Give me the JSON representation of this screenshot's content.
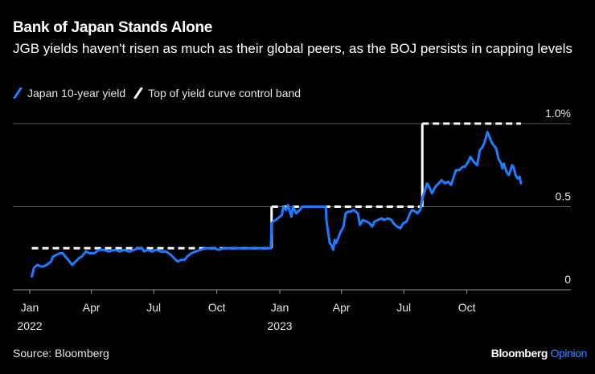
{
  "header": {
    "title": "Bank of Japan Stands Alone",
    "subtitle": "JGB yields haven't risen as much as their global peers, as the BOJ persists in capping levels"
  },
  "legend": [
    {
      "label": "Japan 10-year yield",
      "color": "#1f7bff",
      "style": "solid"
    },
    {
      "label": "Top of yield curve control band",
      "color": "#ffffff",
      "style": "dashed"
    }
  ],
  "footer": {
    "source": "Source: Bloomberg",
    "brand_primary": "Bloomberg",
    "brand_secondary": "Opinion"
  },
  "chart_data": {
    "type": "line",
    "title": "Bank of Japan Stands Alone",
    "subtitle": "JGB yields haven't risen as much as their global peers, as the BOJ persists in capping levels",
    "xlabel": "",
    "ylabel": "",
    "x_range": [
      "2022-01-01",
      "2023-12-31"
    ],
    "ylim": [
      0,
      1.0
    ],
    "y_ticks": [
      {
        "value": 0,
        "label": "0"
      },
      {
        "value": 0.5,
        "label": "0.5"
      },
      {
        "value": 1.0,
        "label": "1.0%"
      }
    ],
    "x_ticks": [
      {
        "date": "2022-01-01",
        "label": "Jan",
        "sublabel": "2022"
      },
      {
        "date": "2022-04-01",
        "label": "Apr",
        "sublabel": ""
      },
      {
        "date": "2022-07-01",
        "label": "Jul",
        "sublabel": ""
      },
      {
        "date": "2022-10-01",
        "label": "Oct",
        "sublabel": ""
      },
      {
        "date": "2023-01-01",
        "label": "Jan",
        "sublabel": "2023"
      },
      {
        "date": "2023-04-01",
        "label": "Apr",
        "sublabel": ""
      },
      {
        "date": "2023-07-01",
        "label": "Jul",
        "sublabel": ""
      },
      {
        "date": "2023-10-01",
        "label": "Oct",
        "sublabel": ""
      }
    ],
    "grid": true,
    "legend_position": "top-left",
    "series": [
      {
        "name": "Japan 10-year yield",
        "color": "#1f7bff",
        "style": "solid",
        "points": [
          [
            "2022-01-04",
            0.08
          ],
          [
            "2022-01-07",
            0.13
          ],
          [
            "2022-01-12",
            0.15
          ],
          [
            "2022-01-17",
            0.14
          ],
          [
            "2022-01-21",
            0.14
          ],
          [
            "2022-01-26",
            0.15
          ],
          [
            "2022-02-01",
            0.17
          ],
          [
            "2022-02-04",
            0.2
          ],
          [
            "2022-02-09",
            0.21
          ],
          [
            "2022-02-14",
            0.22
          ],
          [
            "2022-02-18",
            0.22
          ],
          [
            "2022-02-24",
            0.19
          ],
          [
            "2022-03-04",
            0.15
          ],
          [
            "2022-03-09",
            0.17
          ],
          [
            "2022-03-14",
            0.19
          ],
          [
            "2022-03-18",
            0.2
          ],
          [
            "2022-03-24",
            0.23
          ],
          [
            "2022-03-29",
            0.22
          ],
          [
            "2022-04-05",
            0.22
          ],
          [
            "2022-04-12",
            0.24
          ],
          [
            "2022-04-19",
            0.24
          ],
          [
            "2022-04-26",
            0.23
          ],
          [
            "2022-05-06",
            0.24
          ],
          [
            "2022-05-12",
            0.23
          ],
          [
            "2022-05-19",
            0.24
          ],
          [
            "2022-05-26",
            0.23
          ],
          [
            "2022-06-02",
            0.24
          ],
          [
            "2022-06-09",
            0.25
          ],
          [
            "2022-06-14",
            0.25
          ],
          [
            "2022-06-17",
            0.23
          ],
          [
            "2022-06-22",
            0.24
          ],
          [
            "2022-06-28",
            0.23
          ],
          [
            "2022-07-05",
            0.24
          ],
          [
            "2022-07-12",
            0.23
          ],
          [
            "2022-07-19",
            0.23
          ],
          [
            "2022-07-26",
            0.21
          ],
          [
            "2022-08-02",
            0.18
          ],
          [
            "2022-08-05",
            0.17
          ],
          [
            "2022-08-10",
            0.18
          ],
          [
            "2022-08-15",
            0.18
          ],
          [
            "2022-08-19",
            0.2
          ],
          [
            "2022-08-25",
            0.22
          ],
          [
            "2022-08-31",
            0.23
          ],
          [
            "2022-09-07",
            0.24
          ],
          [
            "2022-09-14",
            0.25
          ],
          [
            "2022-09-20",
            0.25
          ],
          [
            "2022-09-27",
            0.25
          ],
          [
            "2022-10-04",
            0.24
          ],
          [
            "2022-10-11",
            0.25
          ],
          [
            "2022-10-18",
            0.25
          ],
          [
            "2022-10-25",
            0.25
          ],
          [
            "2022-11-01",
            0.25
          ],
          [
            "2022-11-08",
            0.25
          ],
          [
            "2022-11-15",
            0.25
          ],
          [
            "2022-11-22",
            0.25
          ],
          [
            "2022-11-29",
            0.25
          ],
          [
            "2022-12-06",
            0.25
          ],
          [
            "2022-12-13",
            0.25
          ],
          [
            "2022-12-19",
            0.25
          ],
          [
            "2022-12-20",
            0.4
          ],
          [
            "2022-12-22",
            0.41
          ],
          [
            "2022-12-26",
            0.42
          ],
          [
            "2022-12-29",
            0.43
          ],
          [
            "2023-01-04",
            0.45
          ],
          [
            "2023-01-06",
            0.5
          ],
          [
            "2023-01-10",
            0.48
          ],
          [
            "2023-01-13",
            0.51
          ],
          [
            "2023-01-18",
            0.44
          ],
          [
            "2023-01-20",
            0.5
          ],
          [
            "2023-01-25",
            0.46
          ],
          [
            "2023-01-30",
            0.48
          ],
          [
            "2023-02-03",
            0.5
          ],
          [
            "2023-02-08",
            0.5
          ],
          [
            "2023-02-14",
            0.5
          ],
          [
            "2023-02-20",
            0.5
          ],
          [
            "2023-02-27",
            0.5
          ],
          [
            "2023-03-03",
            0.5
          ],
          [
            "2023-03-09",
            0.5
          ],
          [
            "2023-03-10",
            0.42
          ],
          [
            "2023-03-13",
            0.33
          ],
          [
            "2023-03-15",
            0.28
          ],
          [
            "2023-03-17",
            0.27
          ],
          [
            "2023-03-20",
            0.24
          ],
          [
            "2023-03-22",
            0.3
          ],
          [
            "2023-03-24",
            0.28
          ],
          [
            "2023-03-28",
            0.32
          ],
          [
            "2023-03-31",
            0.35
          ],
          [
            "2023-04-04",
            0.38
          ],
          [
            "2023-04-07",
            0.46
          ],
          [
            "2023-04-11",
            0.47
          ],
          [
            "2023-04-14",
            0.47
          ],
          [
            "2023-04-19",
            0.48
          ],
          [
            "2023-04-25",
            0.46
          ],
          [
            "2023-04-28",
            0.39
          ],
          [
            "2023-05-02",
            0.42
          ],
          [
            "2023-05-08",
            0.41
          ],
          [
            "2023-05-12",
            0.4
          ],
          [
            "2023-05-16",
            0.38
          ],
          [
            "2023-05-19",
            0.41
          ],
          [
            "2023-05-24",
            0.42
          ],
          [
            "2023-05-30",
            0.43
          ],
          [
            "2023-06-02",
            0.42
          ],
          [
            "2023-06-08",
            0.43
          ],
          [
            "2023-06-13",
            0.42
          ],
          [
            "2023-06-16",
            0.4
          ],
          [
            "2023-06-21",
            0.38
          ],
          [
            "2023-06-26",
            0.37
          ],
          [
            "2023-06-30",
            0.4
          ],
          [
            "2023-07-05",
            0.41
          ],
          [
            "2023-07-10",
            0.46
          ],
          [
            "2023-07-13",
            0.48
          ],
          [
            "2023-07-18",
            0.47
          ],
          [
            "2023-07-21",
            0.46
          ],
          [
            "2023-07-25",
            0.48
          ],
          [
            "2023-07-28",
            0.55
          ],
          [
            "2023-08-01",
            0.6
          ],
          [
            "2023-08-04",
            0.64
          ],
          [
            "2023-08-08",
            0.61
          ],
          [
            "2023-08-11",
            0.58
          ],
          [
            "2023-08-16",
            0.62
          ],
          [
            "2023-08-21",
            0.64
          ],
          [
            "2023-08-25",
            0.66
          ],
          [
            "2023-08-30",
            0.64
          ],
          [
            "2023-09-04",
            0.65
          ],
          [
            "2023-09-08",
            0.63
          ],
          [
            "2023-09-12",
            0.68
          ],
          [
            "2023-09-15",
            0.72
          ],
          [
            "2023-09-20",
            0.72
          ],
          [
            "2023-09-25",
            0.74
          ],
          [
            "2023-09-28",
            0.74
          ],
          [
            "2023-10-03",
            0.77
          ],
          [
            "2023-10-06",
            0.8
          ],
          [
            "2023-10-11",
            0.77
          ],
          [
            "2023-10-16",
            0.75
          ],
          [
            "2023-10-20",
            0.84
          ],
          [
            "2023-10-24",
            0.86
          ],
          [
            "2023-10-27",
            0.89
          ],
          [
            "2023-10-31",
            0.95
          ],
          [
            "2023-11-02",
            0.93
          ],
          [
            "2023-11-06",
            0.89
          ],
          [
            "2023-11-09",
            0.87
          ],
          [
            "2023-11-13",
            0.85
          ],
          [
            "2023-11-16",
            0.79
          ],
          [
            "2023-11-20",
            0.76
          ],
          [
            "2023-11-22",
            0.73
          ],
          [
            "2023-11-24",
            0.76
          ],
          [
            "2023-11-28",
            0.71
          ],
          [
            "2023-12-01",
            0.69
          ],
          [
            "2023-12-04",
            0.72
          ],
          [
            "2023-12-06",
            0.75
          ],
          [
            "2023-12-08",
            0.74
          ],
          [
            "2023-12-11",
            0.69
          ],
          [
            "2023-12-14",
            0.67
          ],
          [
            "2023-12-17",
            0.68
          ],
          [
            "2023-12-19",
            0.64
          ]
        ]
      },
      {
        "name": "Top of yield curve control band",
        "color": "#ffffff",
        "style": "dashed",
        "points": [
          [
            "2022-01-04",
            0.25
          ],
          [
            "2022-12-20",
            0.25
          ],
          [
            "2022-12-20",
            0.5
          ],
          [
            "2023-07-28",
            0.5
          ],
          [
            "2023-07-28",
            1.0
          ],
          [
            "2023-12-19",
            1.0
          ]
        ]
      }
    ]
  }
}
